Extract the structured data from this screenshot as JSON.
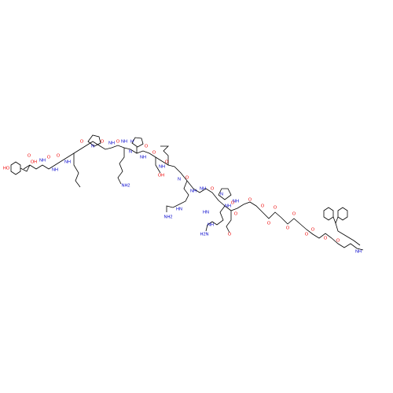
{
  "atoms": [
    {
      "label": "HO",
      "element": "O"
    },
    {
      "label": "O",
      "element": "O"
    },
    {
      "label": "OH",
      "element": "O"
    },
    {
      "label": "NH",
      "element": "N"
    },
    {
      "label": "O",
      "element": "O"
    },
    {
      "label": "NH",
      "element": "N"
    },
    {
      "label": "O",
      "element": "O"
    },
    {
      "label": "NH",
      "element": "N"
    },
    {
      "label": "O",
      "element": "O"
    },
    {
      "label": "N",
      "element": "N"
    },
    {
      "label": "O",
      "element": "O"
    },
    {
      "label": "NH",
      "element": "N"
    },
    {
      "label": "O",
      "element": "O"
    },
    {
      "label": "NH",
      "element": "N"
    },
    {
      "label": "NH2",
      "element": "N"
    },
    {
      "label": "N",
      "element": "N"
    },
    {
      "label": "H",
      "element": "N"
    },
    {
      "label": "O",
      "element": "O"
    },
    {
      "label": "NH",
      "element": "N"
    },
    {
      "label": "O",
      "element": "O"
    },
    {
      "label": "OH",
      "element": "O"
    },
    {
      "label": "NH",
      "element": "N"
    },
    {
      "label": "O",
      "element": "O"
    },
    {
      "label": "N",
      "element": "N"
    },
    {
      "label": "O",
      "element": "O"
    },
    {
      "label": "NH",
      "element": "N"
    },
    {
      "label": "HN",
      "element": "N"
    },
    {
      "label": "NH2",
      "element": "N"
    },
    {
      "label": "NH",
      "element": "N"
    },
    {
      "label": "N",
      "element": "N"
    },
    {
      "label": "O",
      "element": "O"
    },
    {
      "label": "O",
      "element": "O"
    },
    {
      "label": "NH",
      "element": "N"
    },
    {
      "label": "HN",
      "element": "N"
    },
    {
      "label": "H2N",
      "element": "N"
    },
    {
      "label": "NH",
      "element": "N"
    },
    {
      "label": "O",
      "element": "O"
    },
    {
      "label": "NH",
      "element": "N"
    },
    {
      "label": "O",
      "element": "O"
    },
    {
      "label": "O",
      "element": "O"
    },
    {
      "label": "O",
      "element": "O"
    },
    {
      "label": "O",
      "element": "O"
    },
    {
      "label": "O",
      "element": "O"
    },
    {
      "label": "O",
      "element": "O"
    },
    {
      "label": "O",
      "element": "O"
    },
    {
      "label": "O",
      "element": "O"
    },
    {
      "label": "O",
      "element": "O"
    },
    {
      "label": "NH",
      "element": "N"
    },
    {
      "label": "O",
      "element": "O"
    },
    {
      "label": "O",
      "element": "O"
    }
  ]
}
